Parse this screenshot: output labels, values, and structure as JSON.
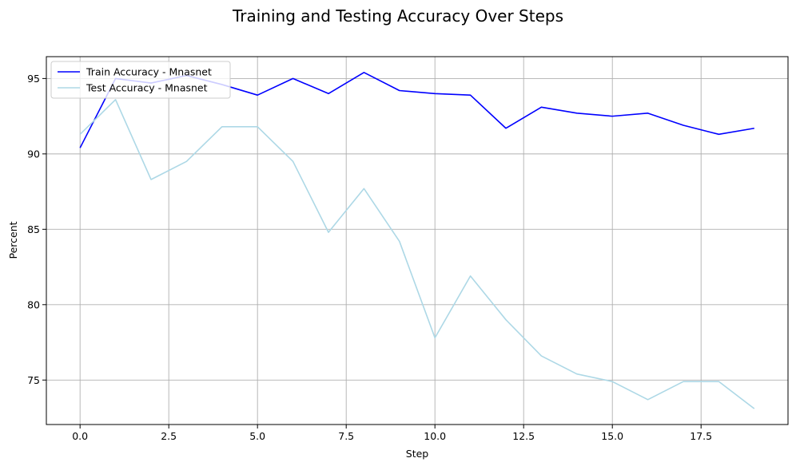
{
  "chart_data": {
    "type": "line",
    "title": "Training and Testing Accuracy Over Steps",
    "xlabel": "Step",
    "ylabel": "Percent",
    "xlim": [
      -0.95,
      19.95
    ],
    "ylim": [
      72.05,
      96.45
    ],
    "xticks": [
      0.0,
      2.5,
      5.0,
      7.5,
      10.0,
      12.5,
      15.0,
      17.5
    ],
    "xtick_labels": [
      "0.0",
      "2.5",
      "5.0",
      "7.5",
      "10.0",
      "12.5",
      "15.0",
      "17.5"
    ],
    "yticks": [
      75,
      80,
      85,
      90,
      95
    ],
    "ytick_labels": [
      "75",
      "80",
      "85",
      "90",
      "95"
    ],
    "grid": true,
    "legend_position": "upper left",
    "x": [
      0,
      1,
      2,
      3,
      4,
      5,
      6,
      7,
      8,
      9,
      10,
      11,
      12,
      13,
      14,
      15,
      16,
      17,
      18,
      19
    ],
    "series": [
      {
        "name": "Train Accuracy - Mnasnet",
        "color": "#0000ff",
        "values": [
          90.4,
          95.0,
          94.7,
          95.2,
          94.6,
          93.9,
          95.0,
          94.0,
          95.4,
          94.2,
          94.0,
          93.9,
          91.7,
          93.1,
          92.7,
          92.5,
          92.7,
          91.9,
          91.3,
          91.7
        ]
      },
      {
        "name": "Test Accuracy - Mnasnet",
        "color": "#add8e6",
        "values": [
          91.3,
          93.6,
          88.3,
          89.5,
          91.8,
          91.8,
          89.5,
          84.8,
          87.7,
          84.2,
          77.8,
          81.9,
          79.0,
          76.6,
          75.4,
          74.9,
          73.7,
          74.9,
          74.9,
          73.1
        ]
      }
    ]
  }
}
